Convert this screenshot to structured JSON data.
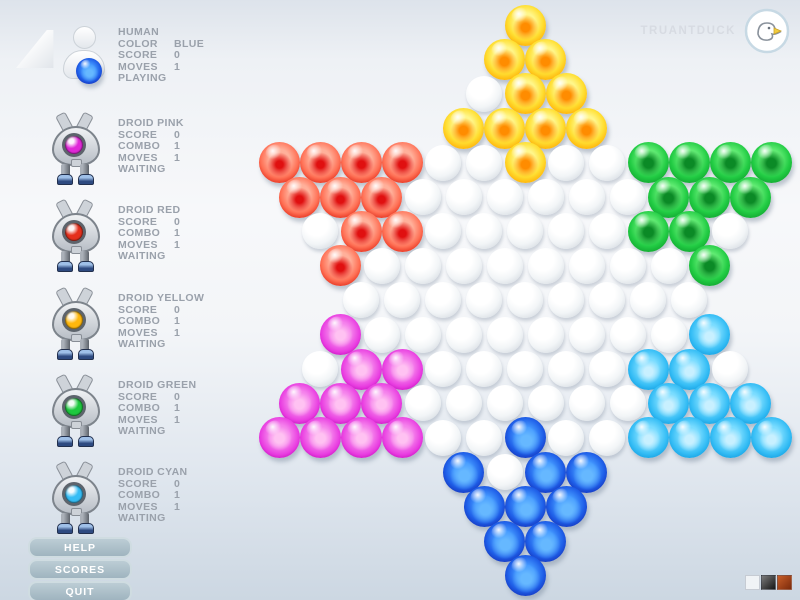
{
  "brand": {
    "name": "TRUANTDUCK"
  },
  "players": [
    {
      "id": "human",
      "name": "HUMAN",
      "color_hex": "#1f5fe8",
      "status": "PLAYING",
      "rows": [
        {
          "label": "COLOR",
          "value": "BLUE"
        },
        {
          "label": "SCORE",
          "value": "0"
        },
        {
          "label": "MOVES",
          "value": "1"
        }
      ]
    },
    {
      "id": "droid-pink",
      "name": "DROID PINK",
      "color_hex": "#e028d8",
      "status": "WAITING",
      "rows": [
        {
          "label": "SCORE",
          "value": "0"
        },
        {
          "label": "COMBO",
          "value": "1"
        },
        {
          "label": "MOVES",
          "value": "1"
        }
      ]
    },
    {
      "id": "droid-red",
      "name": "DROID RED",
      "color_hex": "#e5301d",
      "status": "WAITING",
      "rows": [
        {
          "label": "SCORE",
          "value": "0"
        },
        {
          "label": "COMBO",
          "value": "1"
        },
        {
          "label": "MOVES",
          "value": "1"
        }
      ]
    },
    {
      "id": "droid-yellow",
      "name": "DROID YELLOW",
      "color_hex": "#ffb80d",
      "status": "WAITING",
      "rows": [
        {
          "label": "SCORE",
          "value": "0"
        },
        {
          "label": "COMBO",
          "value": "1"
        },
        {
          "label": "MOVES",
          "value": "1"
        }
      ]
    },
    {
      "id": "droid-green",
      "name": "DROID GREEN",
      "color_hex": "#1dc93e",
      "status": "WAITING",
      "rows": [
        {
          "label": "SCORE",
          "value": "0"
        },
        {
          "label": "COMBO",
          "value": "1"
        },
        {
          "label": "MOVES",
          "value": "1"
        }
      ]
    },
    {
      "id": "droid-cyan",
      "name": "DROID CYAN",
      "color_hex": "#35bdf5",
      "status": "WAITING",
      "rows": [
        {
          "label": "SCORE",
          "value": "0"
        },
        {
          "label": "COMBO",
          "value": "1"
        },
        {
          "label": "MOVES",
          "value": "1"
        }
      ]
    }
  ],
  "buttons": [
    {
      "label": "HELP"
    },
    {
      "label": "SCORES"
    },
    {
      "label": "QUIT"
    }
  ],
  "board": {
    "type": "chinese-checkers-star",
    "legend": {
      "Y": "yellow",
      "R": "red",
      "G": "green",
      "P": "pink",
      "C": "cyan",
      "B": "blue",
      ".": "empty"
    },
    "rows": [
      "Y",
      "YY",
      ".YY",
      "YYYY",
      "RRRR..Y..GGGG",
      "RRR......GGG",
      ".RR.....GG.",
      "R........G",
      ".........",
      "P........C",
      ".PP.....CC.",
      "PPP......CCC",
      "PPPP..B..CCCC",
      "B.BB",
      "BBB",
      "BB",
      "B"
    ],
    "palette": {
      "yellow": "#ffc814",
      "red": "#e5301d",
      "green": "#1dc93e",
      "pink": "#e028d8",
      "cyan": "#35bdf5",
      "blue": "#1f5fe8",
      "hole": "#eef1f4"
    }
  },
  "corner_swatches": [
    {
      "name": "white",
      "css": "#f0f3f6"
    },
    {
      "name": "dark",
      "css": "linear-gradient(135deg,#7a7a7a,#161616)"
    },
    {
      "name": "rust",
      "css": "linear-gradient(135deg,#c75d28,#7c2b0b)"
    }
  ]
}
